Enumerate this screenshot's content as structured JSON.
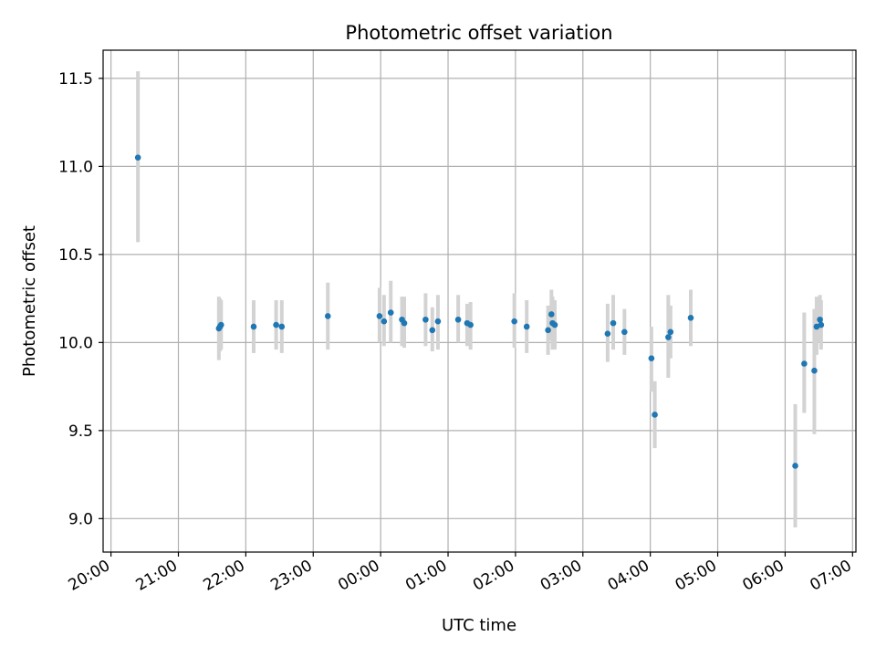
{
  "chart_data": {
    "type": "scatter",
    "title": "Photometric offset variation",
    "xlabel": "UTC time",
    "ylabel": "Photometric offset",
    "grid": true,
    "x_ticks": [
      "20:00",
      "21:00",
      "22:00",
      "23:00",
      "00:00",
      "01:00",
      "02:00",
      "03:00",
      "04:00",
      "05:00",
      "06:00",
      "07:00"
    ],
    "y_ticks": [
      "9.0",
      "9.5",
      "10.0",
      "10.5",
      "11.0",
      "11.5"
    ],
    "xlim": [
      "19:53",
      "07:03"
    ],
    "ylim": [
      8.81,
      11.66
    ],
    "colors": {
      "point": "#1f77b4",
      "errorbar": "#d3d3d3",
      "grid": "#b0b0b0"
    },
    "points": [
      {
        "x": "20:24",
        "y": 11.05,
        "ylow": 10.57,
        "yhigh": 11.54
      },
      {
        "x": "21:36",
        "y": 10.08,
        "ylow": 9.9,
        "yhigh": 10.26
      },
      {
        "x": "21:37",
        "y": 10.09,
        "ylow": 9.95,
        "yhigh": 10.25
      },
      {
        "x": "21:38",
        "y": 10.1,
        "ylow": 9.96,
        "yhigh": 10.24
      },
      {
        "x": "22:07",
        "y": 10.09,
        "ylow": 9.94,
        "yhigh": 10.24
      },
      {
        "x": "22:27",
        "y": 10.1,
        "ylow": 9.96,
        "yhigh": 10.24
      },
      {
        "x": "22:32",
        "y": 10.09,
        "ylow": 9.94,
        "yhigh": 10.24
      },
      {
        "x": "23:13",
        "y": 10.15,
        "ylow": 9.96,
        "yhigh": 10.34
      },
      {
        "x": "23:59",
        "y": 10.15,
        "ylow": 10.0,
        "yhigh": 10.31
      },
      {
        "x": "00:03",
        "y": 10.12,
        "ylow": 9.98,
        "yhigh": 10.27
      },
      {
        "x": "00:09",
        "y": 10.17,
        "ylow": 10.0,
        "yhigh": 10.35
      },
      {
        "x": "00:19",
        "y": 10.13,
        "ylow": 9.98,
        "yhigh": 10.26
      },
      {
        "x": "00:21",
        "y": 10.11,
        "ylow": 9.97,
        "yhigh": 10.26
      },
      {
        "x": "00:40",
        "y": 10.13,
        "ylow": 9.98,
        "yhigh": 10.28
      },
      {
        "x": "00:46",
        "y": 10.07,
        "ylow": 9.95,
        "yhigh": 10.2
      },
      {
        "x": "00:51",
        "y": 10.12,
        "ylow": 9.96,
        "yhigh": 10.27
      },
      {
        "x": "01:09",
        "y": 10.13,
        "ylow": 10.0,
        "yhigh": 10.27
      },
      {
        "x": "01:17",
        "y": 10.11,
        "ylow": 9.98,
        "yhigh": 10.22
      },
      {
        "x": "01:20",
        "y": 10.1,
        "ylow": 9.96,
        "yhigh": 10.23
      },
      {
        "x": "01:59",
        "y": 10.12,
        "ylow": 9.97,
        "yhigh": 10.28
      },
      {
        "x": "02:10",
        "y": 10.09,
        "ylow": 9.94,
        "yhigh": 10.24
      },
      {
        "x": "02:29",
        "y": 10.07,
        "ylow": 9.93,
        "yhigh": 10.21
      },
      {
        "x": "02:32",
        "y": 10.16,
        "ylow": 10.01,
        "yhigh": 10.3
      },
      {
        "x": "02:33",
        "y": 10.11,
        "ylow": 9.96,
        "yhigh": 10.26
      },
      {
        "x": "02:35",
        "y": 10.1,
        "ylow": 9.96,
        "yhigh": 10.24
      },
      {
        "x": "03:22",
        "y": 10.05,
        "ylow": 9.89,
        "yhigh": 10.22
      },
      {
        "x": "03:27",
        "y": 10.11,
        "ylow": 9.96,
        "yhigh": 10.27
      },
      {
        "x": "03:37",
        "y": 10.06,
        "ylow": 9.93,
        "yhigh": 10.19
      },
      {
        "x": "04:01",
        "y": 9.91,
        "ylow": 9.72,
        "yhigh": 10.09
      },
      {
        "x": "04:04",
        "y": 9.59,
        "ylow": 9.4,
        "yhigh": 9.78
      },
      {
        "x": "04:16",
        "y": 10.03,
        "ylow": 9.8,
        "yhigh": 10.27
      },
      {
        "x": "04:18",
        "y": 10.06,
        "ylow": 9.91,
        "yhigh": 10.21
      },
      {
        "x": "04:36",
        "y": 10.14,
        "ylow": 9.98,
        "yhigh": 10.3
      },
      {
        "x": "06:09",
        "y": 9.3,
        "ylow": 8.95,
        "yhigh": 9.65
      },
      {
        "x": "06:17",
        "y": 9.88,
        "ylow": 9.6,
        "yhigh": 10.17
      },
      {
        "x": "06:26",
        "y": 9.84,
        "ylow": 9.48,
        "yhigh": 10.19
      },
      {
        "x": "06:28",
        "y": 10.09,
        "ylow": 9.93,
        "yhigh": 10.26
      },
      {
        "x": "06:31",
        "y": 10.13,
        "ylow": 10.0,
        "yhigh": 10.27
      },
      {
        "x": "06:32",
        "y": 10.1,
        "ylow": 9.96,
        "yhigh": 10.24
      }
    ]
  }
}
